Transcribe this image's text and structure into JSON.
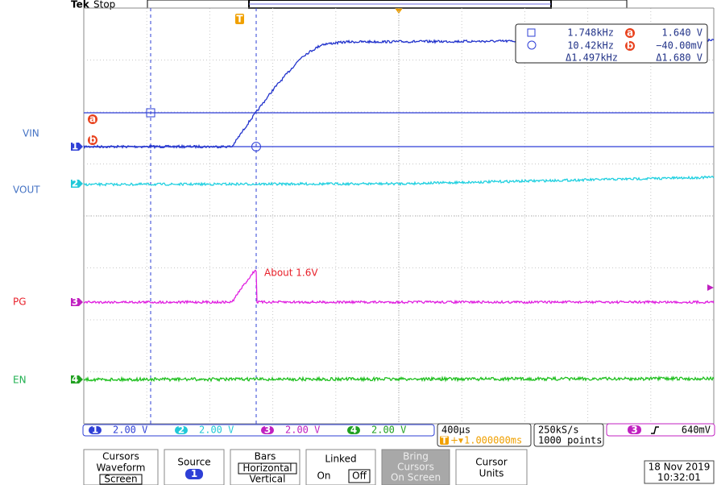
{
  "header": {
    "brand": "Tek",
    "status": "Stop"
  },
  "markers": {
    "trigger": "T",
    "cursor_a": "a",
    "cursor_b": "b"
  },
  "cursor_readout": {
    "square_freq": "1.748kHz",
    "a_value": "1.640 V",
    "circle_freq": "10.42kHz",
    "b_value": "−40.00mV",
    "delta_freq": "Δ1.497kHz",
    "delta_value": "Δ1.680 V"
  },
  "trace_labels": [
    "VIN",
    "VOUT",
    "PG",
    "EN"
  ],
  "annotation": "About 1.6V",
  "channels": [
    {
      "number": "1",
      "scale": "2.00 V"
    },
    {
      "number": "2",
      "scale": "2.00 V"
    },
    {
      "number": "3",
      "scale": "2.00 V"
    },
    {
      "number": "4",
      "scale": "2.00 V"
    }
  ],
  "timebase": {
    "scale": "400µs",
    "trigger_position": "1.000000ms",
    "sample_rate": "250kS/s",
    "record_length": "1000 points"
  },
  "trigger": {
    "source": "3",
    "level": "640mV"
  },
  "menu": {
    "cursors": {
      "title": "Cursors",
      "line1": "Waveform",
      "line2": "Screen"
    },
    "source": {
      "title": "Source",
      "value": "1"
    },
    "bars": {
      "title": "Bars",
      "line1": "Horizontal",
      "line2": "Vertical"
    },
    "linked": {
      "title": "Linked",
      "on": "On",
      "off": "Off"
    },
    "bring": {
      "line1": "Bring",
      "line2": "Cursors",
      "line3": "On Screen"
    },
    "units": {
      "line1": "Cursor",
      "line2": "Units"
    }
  },
  "datetime": {
    "date": "18 Nov 2019",
    "time": "10:32:01"
  }
}
